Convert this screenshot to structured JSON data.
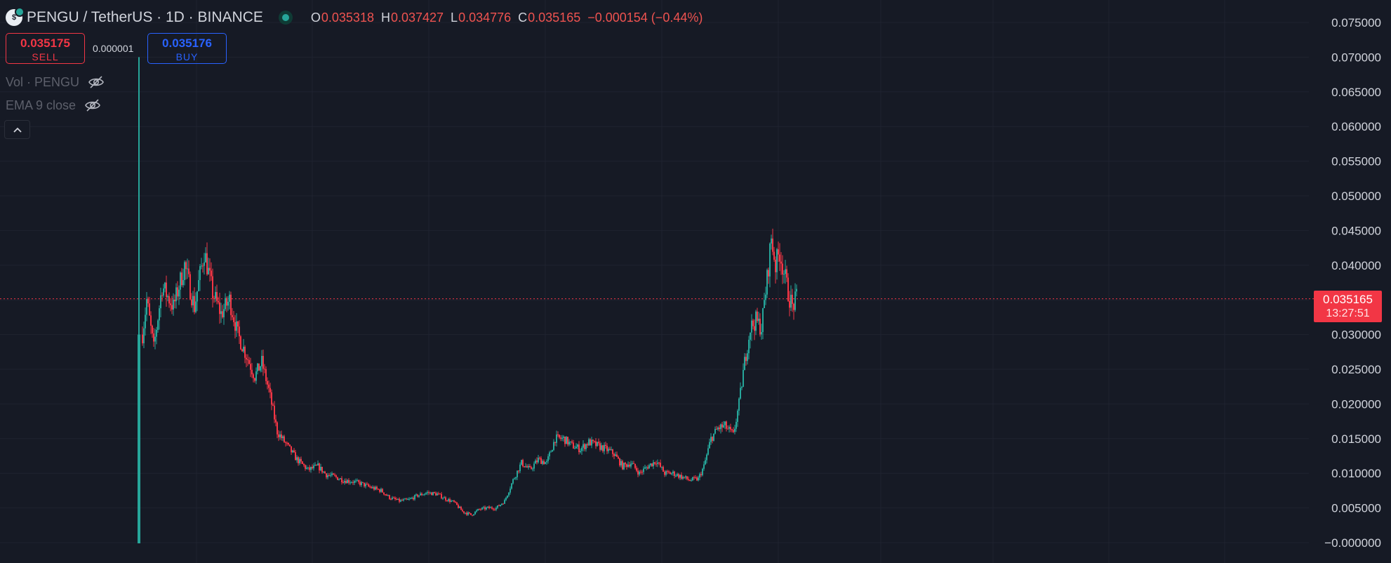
{
  "header": {
    "symbol": "PENGU / TetherUS · 1D · BINANCE",
    "logo_glyph": "$",
    "ohlc": {
      "o_label": "O",
      "o": "0.035318",
      "h_label": "H",
      "h": "0.037427",
      "l_label": "L",
      "l": "0.034776",
      "c_label": "C",
      "c": "0.035165",
      "change": "−0.000154 (−0.44%)"
    }
  },
  "trade": {
    "sell_price": "0.035175",
    "sell_label": "SELL",
    "spread": "0.000001",
    "buy_price": "0.035176",
    "buy_label": "BUY"
  },
  "indicators": [
    {
      "label": "Vol · PENGU",
      "icon": "eye-off-icon"
    },
    {
      "label": "EMA 9 close",
      "icon": "eye-off-icon"
    }
  ],
  "collapse_icon": "chevron-up-icon",
  "last_price": {
    "price": "0.035165",
    "countdown": "13:27:51"
  },
  "colors": {
    "background": "#161a25",
    "grid": "#1f2330",
    "up": "#26a69a",
    "down": "#f23645",
    "axis_text": "#d1d4dc",
    "last_price_line": "#f23645"
  },
  "chart_data": {
    "type": "candlestick",
    "title": "PENGU / TetherUS · 1D · BINANCE",
    "xlabel": "",
    "ylabel": "",
    "ylim": [
      -0.0,
      0.077
    ],
    "y_ticks": [
      "0.075000",
      "0.070000",
      "0.065000",
      "0.060000",
      "0.055000",
      "0.050000",
      "0.045000",
      "0.040000",
      "0.035000",
      "0.030000",
      "0.025000",
      "0.020000",
      "0.015000",
      "0.010000",
      "0.005000",
      "−0.000000"
    ],
    "y_tick_values": [
      0.075,
      0.07,
      0.065,
      0.06,
      0.055,
      0.05,
      0.045,
      0.04,
      0.035,
      0.03,
      0.025,
      0.02,
      0.015,
      0.01,
      0.005,
      0.0
    ],
    "grid": true,
    "last_price": 0.035165,
    "spike_candle": {
      "open": 0.0,
      "high": 0.07,
      "low": 0.0025,
      "close": 0.03
    },
    "path_points": [
      [
        0,
        0.03
      ],
      [
        3,
        0.035
      ],
      [
        8,
        0.028
      ],
      [
        14,
        0.037
      ],
      [
        22,
        0.034
      ],
      [
        30,
        0.04
      ],
      [
        37,
        0.034
      ],
      [
        44,
        0.042
      ],
      [
        50,
        0.036
      ],
      [
        56,
        0.033
      ],
      [
        62,
        0.035
      ],
      [
        68,
        0.03
      ],
      [
        74,
        0.027
      ],
      [
        80,
        0.024
      ],
      [
        85,
        0.026
      ],
      [
        90,
        0.022
      ],
      [
        96,
        0.016
      ],
      [
        103,
        0.014
      ],
      [
        110,
        0.012
      ],
      [
        118,
        0.0105
      ],
      [
        125,
        0.011
      ],
      [
        131,
        0.0098
      ],
      [
        137,
        0.0095
      ],
      [
        143,
        0.009
      ],
      [
        150,
        0.0088
      ],
      [
        156,
        0.0085
      ],
      [
        162,
        0.008
      ],
      [
        170,
        0.0075
      ],
      [
        176,
        0.0065
      ],
      [
        183,
        0.006
      ],
      [
        190,
        0.0062
      ],
      [
        196,
        0.0068
      ],
      [
        203,
        0.0072
      ],
      [
        210,
        0.007
      ],
      [
        216,
        0.0063
      ],
      [
        222,
        0.0058
      ],
      [
        228,
        0.0045
      ],
      [
        234,
        0.004
      ],
      [
        240,
        0.0048
      ],
      [
        246,
        0.005
      ],
      [
        252,
        0.005
      ],
      [
        258,
        0.006
      ],
      [
        264,
        0.009
      ],
      [
        270,
        0.0115
      ],
      [
        276,
        0.0105
      ],
      [
        282,
        0.012
      ],
      [
        288,
        0.0115
      ],
      [
        294,
        0.015
      ],
      [
        300,
        0.015
      ],
      [
        306,
        0.014
      ],
      [
        312,
        0.0135
      ],
      [
        318,
        0.0145
      ],
      [
        324,
        0.014
      ],
      [
        330,
        0.0135
      ],
      [
        336,
        0.0128
      ],
      [
        342,
        0.011
      ],
      [
        348,
        0.0115
      ],
      [
        354,
        0.01
      ],
      [
        360,
        0.011
      ],
      [
        366,
        0.0118
      ],
      [
        372,
        0.01
      ],
      [
        378,
        0.01
      ],
      [
        384,
        0.0095
      ],
      [
        390,
        0.009
      ],
      [
        396,
        0.0092
      ],
      [
        400,
        0.011
      ],
      [
        405,
        0.015
      ],
      [
        410,
        0.0165
      ],
      [
        415,
        0.0168
      ],
      [
        421,
        0.0155
      ],
      [
        425,
        0.02
      ],
      [
        429,
        0.026
      ],
      [
        433,
        0.031
      ],
      [
        437,
        0.032
      ],
      [
        441,
        0.031
      ],
      [
        445,
        0.038
      ],
      [
        448,
        0.044
      ],
      [
        451,
        0.04
      ],
      [
        454,
        0.042
      ],
      [
        457,
        0.039
      ],
      [
        460,
        0.036
      ],
      [
        463,
        0.034
      ],
      [
        466,
        0.0352
      ]
    ]
  }
}
